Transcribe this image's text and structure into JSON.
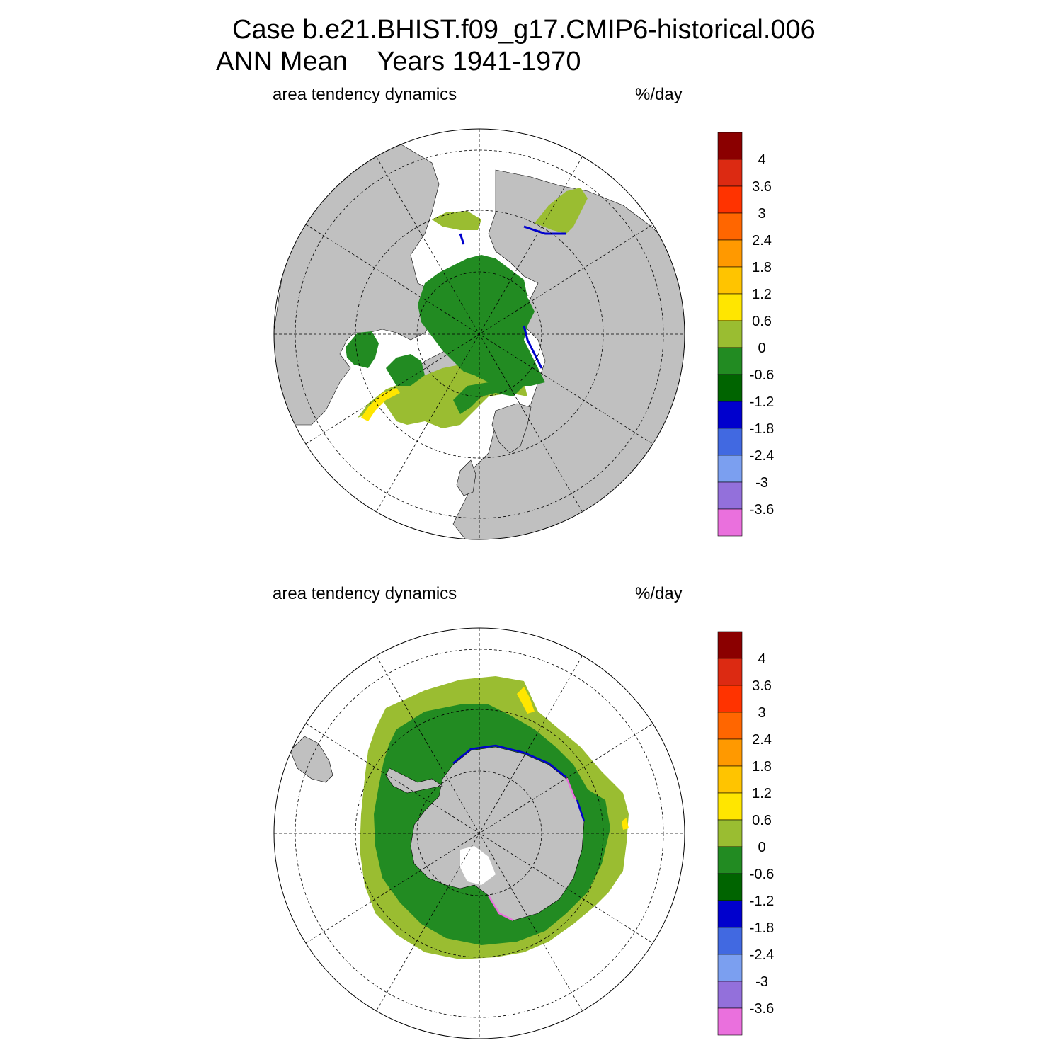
{
  "header": {
    "line1": "Case b.e21.BHIST.f09_g17.CMIP6-historical.006",
    "line2": "ANN Mean    Years 1941-1970"
  },
  "panels": [
    {
      "hemisphere": "north",
      "left_label": "area tendency dynamics",
      "right_label": "%/day"
    },
    {
      "hemisphere": "south",
      "left_label": "area tendency dynamics",
      "right_label": "%/day"
    }
  ],
  "colorbar": {
    "labels": [
      "4",
      "3.6",
      "3",
      "2.4",
      "1.8",
      "1.2",
      "0.6",
      "0",
      "-0.6",
      "-1.2",
      "-1.8",
      "-2.4",
      "-3",
      "-3.6"
    ],
    "colors": [
      "#8b0000",
      "#dc2a12",
      "#ff3300",
      "#ff6600",
      "#ff9900",
      "#ffc400",
      "#ffe600",
      "#9abd31",
      "#228b22",
      "#006400",
      "#0000cd",
      "#4169e1",
      "#7b9ff0",
      "#9370db",
      "#ea70dd"
    ]
  },
  "colors": {
    "land": "#c0c0c0",
    "ocean": "#ffffff",
    "ice_green": "#228b22",
    "ice_lightgreen": "#9abd31",
    "ice_darkgreen": "#006400",
    "edge_blue": "#0000cd",
    "edge_yellow": "#ffe600"
  }
}
